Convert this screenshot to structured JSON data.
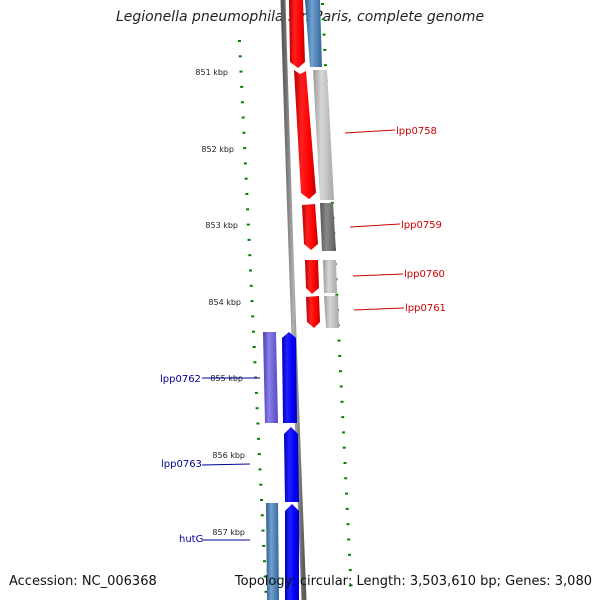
{
  "title": "Legionella pneumophila str. Paris, complete genome",
  "accession": "Accession: NC_006368",
  "summary": "Topology: circular; Length: 3,503,610 bp; Genes: 3,080",
  "colors": {
    "forward_cds": "#ff0000",
    "reverse_cds": "#0000ff",
    "backbone": "#888888",
    "tick": "#008000",
    "forward_label": "#cc0000",
    "reverse_label": "#000099"
  },
  "scale": {
    "unit": "kbp",
    "labels": [
      "851 kbp",
      "852 kbp",
      "853 kbp",
      "854 kbp",
      "855 kbp",
      "856 kbp",
      "857 kbp"
    ]
  },
  "genes": {
    "forward": [
      "lpp0758",
      "lpp0759",
      "lpp0760",
      "lpp0761"
    ],
    "reverse": [
      "lpp0762",
      "lpp0763",
      "hutG"
    ]
  }
}
